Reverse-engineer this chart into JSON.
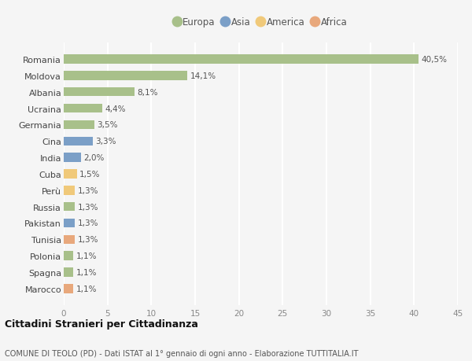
{
  "countries": [
    "Romania",
    "Moldova",
    "Albania",
    "Ucraina",
    "Germania",
    "Cina",
    "India",
    "Cuba",
    "Perù",
    "Russia",
    "Pakistan",
    "Tunisia",
    "Polonia",
    "Spagna",
    "Marocco"
  ],
  "values": [
    40.5,
    14.1,
    8.1,
    4.4,
    3.5,
    3.3,
    2.0,
    1.5,
    1.3,
    1.3,
    1.3,
    1.3,
    1.1,
    1.1,
    1.1
  ],
  "labels": [
    "40,5%",
    "14,1%",
    "8,1%",
    "4,4%",
    "3,5%",
    "3,3%",
    "2,0%",
    "1,5%",
    "1,3%",
    "1,3%",
    "1,3%",
    "1,3%",
    "1,1%",
    "1,1%",
    "1,1%"
  ],
  "continents": [
    "Europa",
    "Europa",
    "Europa",
    "Europa",
    "Europa",
    "Asia",
    "Asia",
    "America",
    "America",
    "Europa",
    "Asia",
    "Africa",
    "Europa",
    "Europa",
    "Africa"
  ],
  "colors": {
    "Europa": "#a8c08a",
    "Asia": "#7b9fc7",
    "America": "#f0c97a",
    "Africa": "#e8a87c"
  },
  "legend_order": [
    "Europa",
    "Asia",
    "America",
    "Africa"
  ],
  "xlim": [
    0,
    45
  ],
  "xticks": [
    0,
    5,
    10,
    15,
    20,
    25,
    30,
    35,
    40,
    45
  ],
  "title": "Cittadini Stranieri per Cittadinanza",
  "subtitle": "COMUNE DI TEOLO (PD) - Dati ISTAT al 1° gennaio di ogni anno - Elaborazione TUTTITALIA.IT",
  "bg_color": "#f5f5f5",
  "grid_color": "#ffffff",
  "bar_height": 0.55,
  "label_fontsize": 7.5,
  "ytick_fontsize": 8,
  "xtick_fontsize": 7.5
}
